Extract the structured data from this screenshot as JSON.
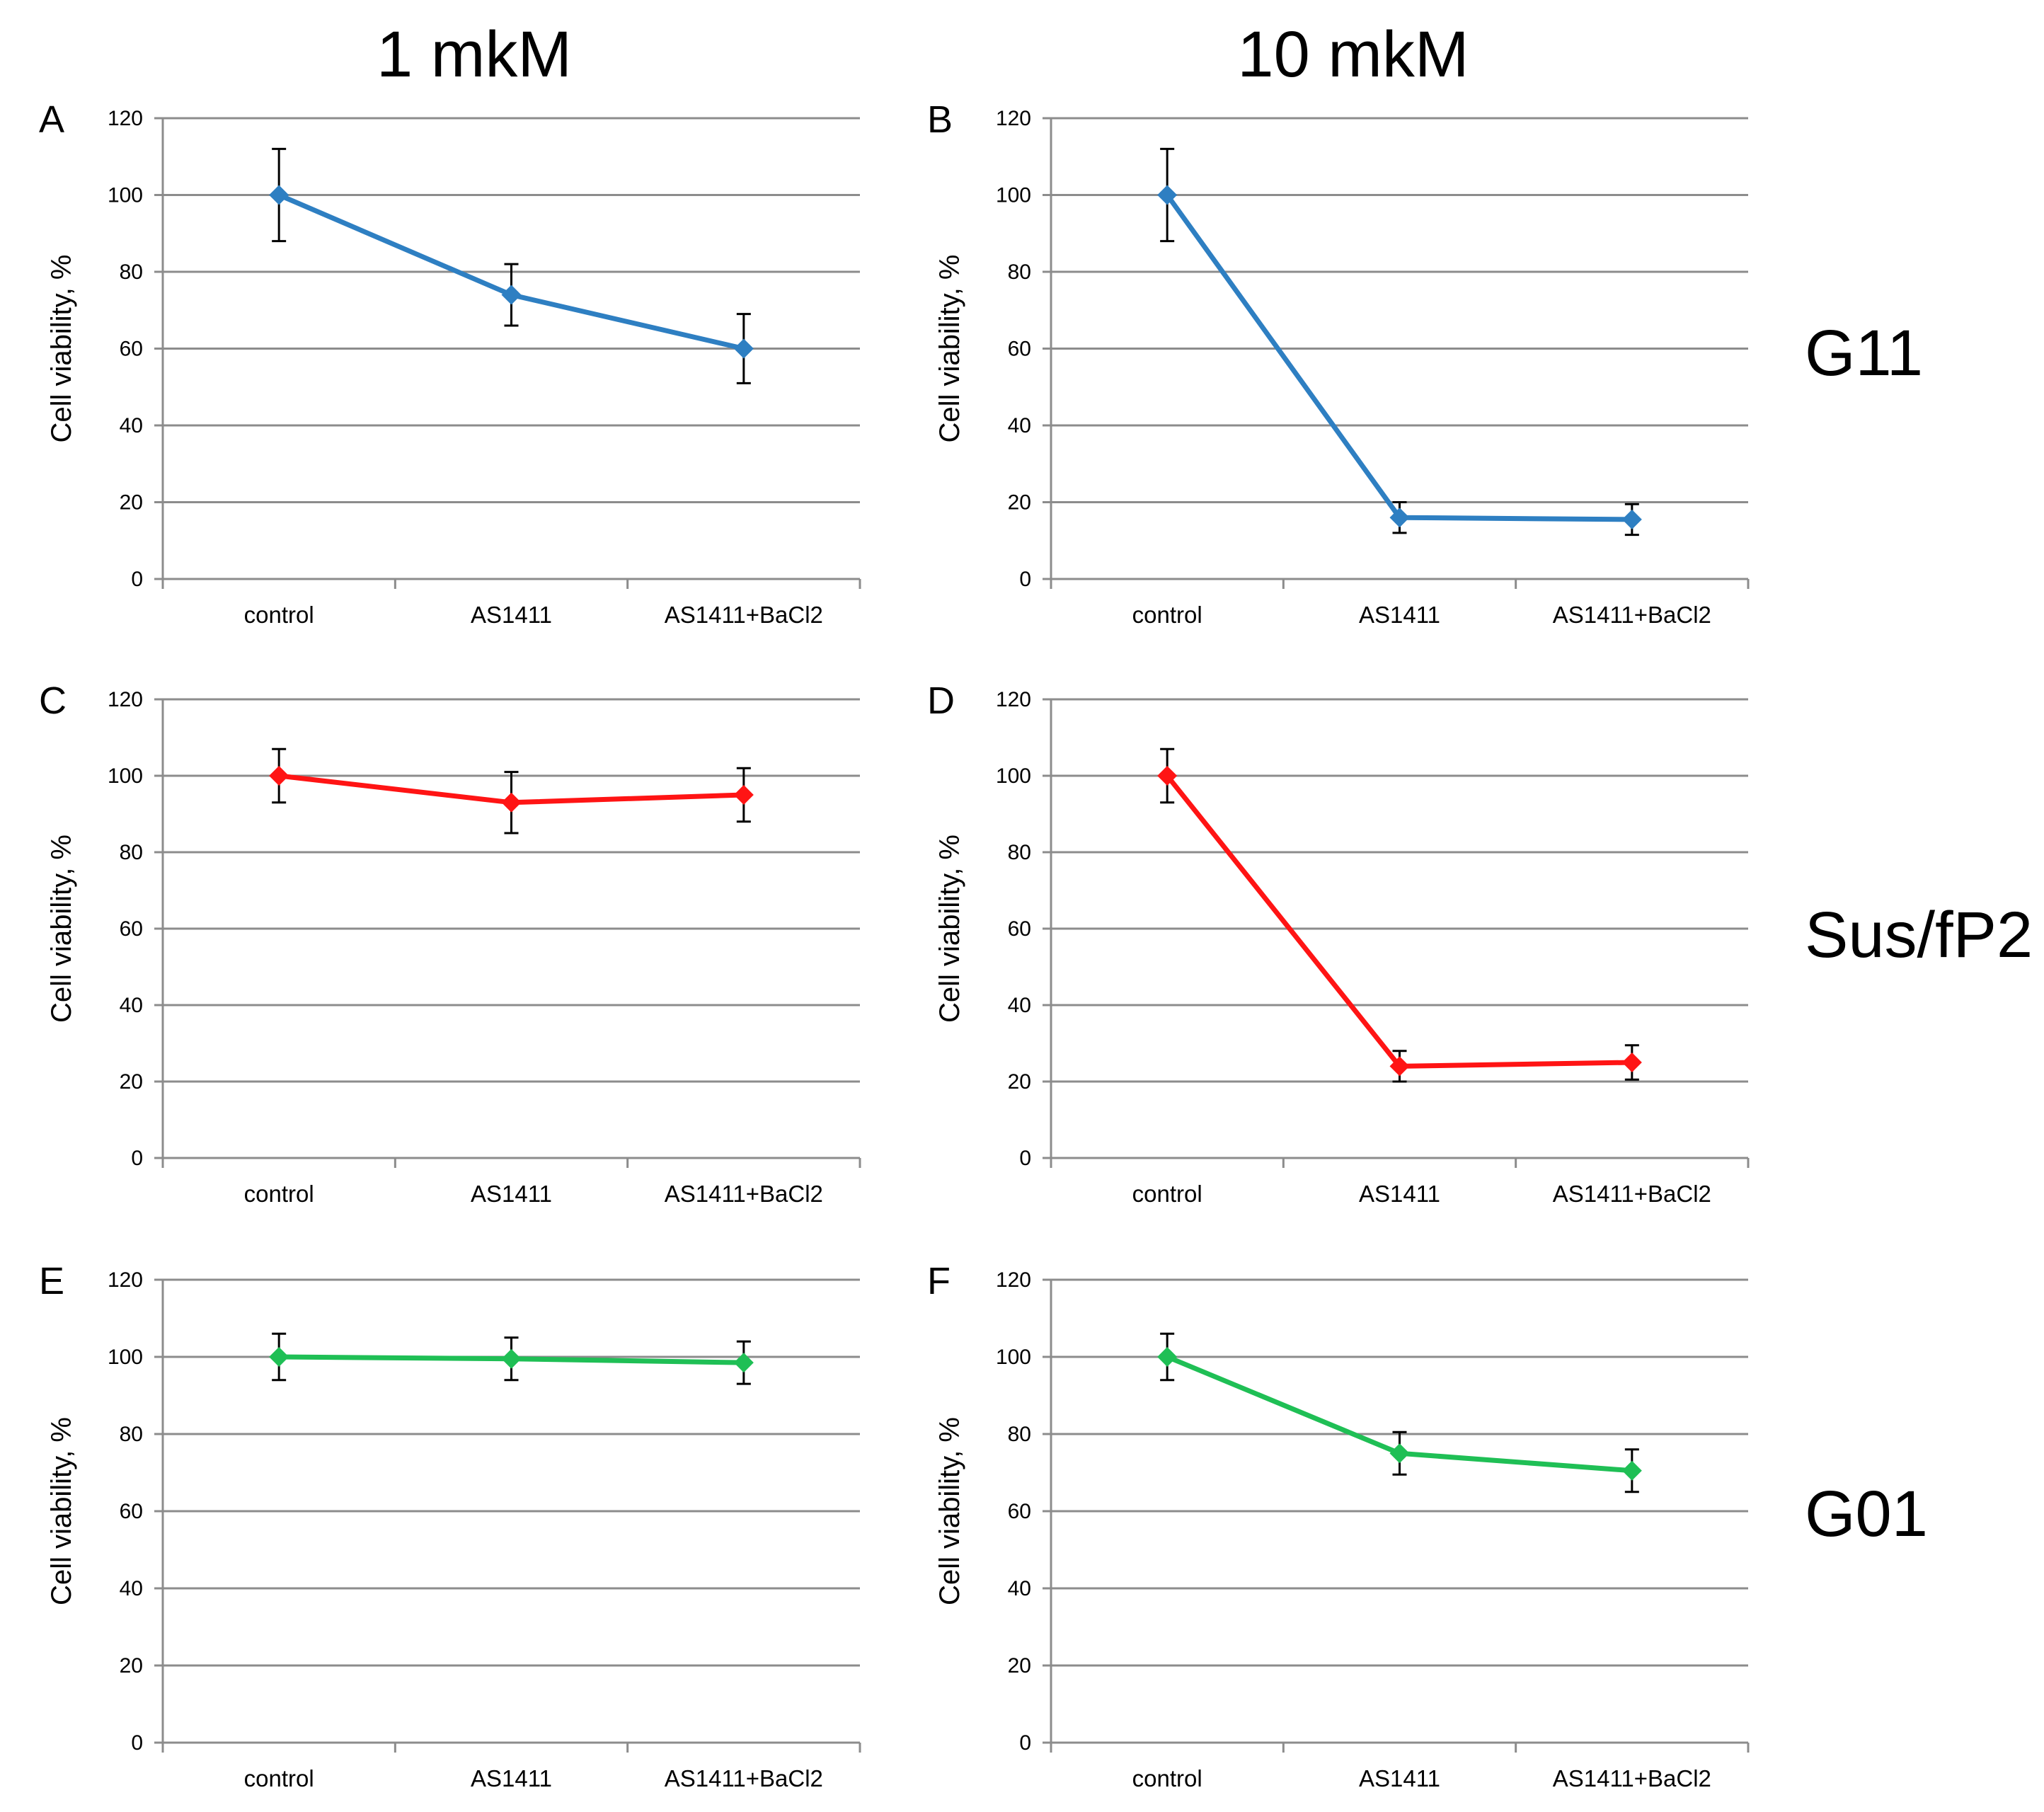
{
  "figure": {
    "column_titles": [
      "1 mkM",
      "10 mkM"
    ],
    "row_labels": [
      "G11",
      "Sus/fP2",
      "G01"
    ]
  },
  "chart_data": [
    {
      "panel": "A",
      "type": "line",
      "cell_line": "G11",
      "concentration": "1 mkM",
      "categories": [
        "control",
        "AS1411",
        "AS1411+BaCl2"
      ],
      "values": [
        100,
        74,
        60
      ],
      "errors": [
        12,
        8,
        9
      ],
      "color": "#2e7fc2",
      "ylabel": "Cell viability, %",
      "ylim": [
        0,
        120
      ],
      "yticks": [
        0,
        20,
        40,
        60,
        80,
        100,
        120
      ],
      "grid": true
    },
    {
      "panel": "B",
      "type": "line",
      "cell_line": "G11",
      "concentration": "10 mkM",
      "categories": [
        "control",
        "AS1411",
        "AS1411+BaCl2"
      ],
      "values": [
        100,
        16,
        15.5
      ],
      "errors": [
        12,
        4,
        4
      ],
      "color": "#2e7fc2",
      "ylabel": "Cell viability, %",
      "ylim": [
        0,
        120
      ],
      "yticks": [
        0,
        20,
        40,
        60,
        80,
        100,
        120
      ],
      "grid": true
    },
    {
      "panel": "C",
      "type": "line",
      "cell_line": "Sus/fP2",
      "concentration": "1 mkM",
      "categories": [
        "control",
        "AS1411",
        "AS1411+BaCl2"
      ],
      "values": [
        100,
        93,
        95
      ],
      "errors": [
        7,
        8,
        7
      ],
      "color": "#ff1414",
      "ylabel": "Cell viability, %",
      "ylim": [
        0,
        120
      ],
      "yticks": [
        0,
        20,
        40,
        60,
        80,
        100,
        120
      ],
      "grid": true
    },
    {
      "panel": "D",
      "type": "line",
      "cell_line": "Sus/fP2",
      "concentration": "10 mkM",
      "categories": [
        "control",
        "AS1411",
        "AS1411+BaCl2"
      ],
      "values": [
        100,
        24,
        25
      ],
      "errors": [
        7,
        4,
        4.5
      ],
      "color": "#ff1414",
      "ylabel": "Cell viability, %",
      "ylim": [
        0,
        120
      ],
      "yticks": [
        0,
        20,
        40,
        60,
        80,
        100,
        120
      ],
      "grid": true
    },
    {
      "panel": "E",
      "type": "line",
      "cell_line": "G01",
      "concentration": "1 mkM",
      "categories": [
        "control",
        "AS1411",
        "AS1411+BaCl2"
      ],
      "values": [
        100,
        99.5,
        98.5
      ],
      "errors": [
        6,
        5.5,
        5.5
      ],
      "color": "#1fbf55",
      "ylabel": "Cell viability, %",
      "ylim": [
        0,
        120
      ],
      "yticks": [
        0,
        20,
        40,
        60,
        80,
        100,
        120
      ],
      "grid": true
    },
    {
      "panel": "F",
      "type": "line",
      "cell_line": "G01",
      "concentration": "10 mkM",
      "categories": [
        "control",
        "AS1411",
        "AS1411+BaCl2"
      ],
      "values": [
        100,
        75,
        70.5
      ],
      "errors": [
        6,
        5.5,
        5.5
      ],
      "color": "#1fbf55",
      "ylabel": "Cell viability, %",
      "ylim": [
        0,
        120
      ],
      "yticks": [
        0,
        20,
        40,
        60,
        80,
        100,
        120
      ],
      "grid": true
    }
  ]
}
